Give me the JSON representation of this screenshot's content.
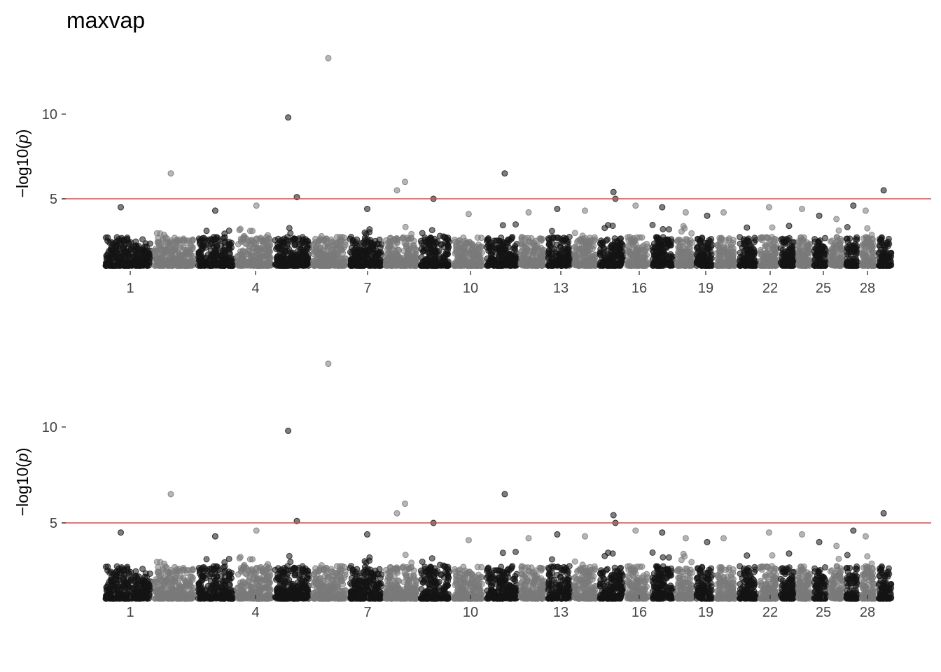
{
  "title": "maxvap",
  "colors": {
    "odd_chromosome": "#141414",
    "even_chromosome": "#7a7a7a",
    "threshold": "#e0474c",
    "tick_text": "#444444"
  },
  "chart_data": [
    {
      "type": "scatter",
      "subtype": "manhattan",
      "ylabel_text": "−log10(",
      "ylabel_var": "p",
      "ylabel_close": ")",
      "threshold": 5,
      "ylim": [
        1,
        13.5
      ],
      "yticks": [
        5,
        10
      ],
      "grid": false,
      "xticks": [
        "1",
        "4",
        "7",
        "10",
        "13",
        "16",
        "19",
        "22",
        "25",
        "28"
      ],
      "top_hits": [
        {
          "chr": 1,
          "y": 4.5
        },
        {
          "chr": 2,
          "y": 6.5
        },
        {
          "chr": 3,
          "y": 4.3
        },
        {
          "chr": 4,
          "y": 4.6
        },
        {
          "chr": 5,
          "y": 5.1
        },
        {
          "chr": 5,
          "y": 9.8
        },
        {
          "chr": 6,
          "y": 13.3
        },
        {
          "chr": 7,
          "y": 4.4
        },
        {
          "chr": 8,
          "y": 6.0
        },
        {
          "chr": 8,
          "y": 5.5
        },
        {
          "chr": 9,
          "y": 5.0
        },
        {
          "chr": 10,
          "y": 4.1
        },
        {
          "chr": 11,
          "y": 6.5
        },
        {
          "chr": 12,
          "y": 4.2
        },
        {
          "chr": 13,
          "y": 4.4
        },
        {
          "chr": 14,
          "y": 4.3
        },
        {
          "chr": 15,
          "y": 5.4
        },
        {
          "chr": 15,
          "y": 5.0
        },
        {
          "chr": 16,
          "y": 4.6
        },
        {
          "chr": 17,
          "y": 4.5
        },
        {
          "chr": 18,
          "y": 4.2
        },
        {
          "chr": 19,
          "y": 4.0
        },
        {
          "chr": 20,
          "y": 4.2
        },
        {
          "chr": 21,
          "y": 3.3
        },
        {
          "chr": 22,
          "y": 4.5
        },
        {
          "chr": 23,
          "y": 3.4
        },
        {
          "chr": 24,
          "y": 4.4
        },
        {
          "chr": 25,
          "y": 4.0
        },
        {
          "chr": 26,
          "y": 3.8
        },
        {
          "chr": 27,
          "y": 4.6
        },
        {
          "chr": 28,
          "y": 4.3
        },
        {
          "chr": 29,
          "y": 5.5
        }
      ]
    },
    {
      "type": "scatter",
      "subtype": "manhattan",
      "ylabel_text": "−log10(",
      "ylabel_var": "p",
      "ylabel_close": ")",
      "threshold": 5,
      "ylim": [
        1,
        13.5
      ],
      "yticks": [
        5,
        10
      ],
      "grid": false,
      "xticks": [
        "1",
        "4",
        "7",
        "10",
        "13",
        "16",
        "19",
        "22",
        "25",
        "28"
      ],
      "top_hits": [
        {
          "chr": 1,
          "y": 4.5
        },
        {
          "chr": 2,
          "y": 6.5
        },
        {
          "chr": 3,
          "y": 4.3
        },
        {
          "chr": 4,
          "y": 4.6
        },
        {
          "chr": 5,
          "y": 5.1
        },
        {
          "chr": 5,
          "y": 9.8
        },
        {
          "chr": 6,
          "y": 13.3
        },
        {
          "chr": 7,
          "y": 4.4
        },
        {
          "chr": 8,
          "y": 6.0
        },
        {
          "chr": 8,
          "y": 5.5
        },
        {
          "chr": 9,
          "y": 5.0
        },
        {
          "chr": 10,
          "y": 4.1
        },
        {
          "chr": 11,
          "y": 6.5
        },
        {
          "chr": 12,
          "y": 4.2
        },
        {
          "chr": 13,
          "y": 4.4
        },
        {
          "chr": 14,
          "y": 4.3
        },
        {
          "chr": 15,
          "y": 5.4
        },
        {
          "chr": 15,
          "y": 5.0
        },
        {
          "chr": 16,
          "y": 4.6
        },
        {
          "chr": 17,
          "y": 4.5
        },
        {
          "chr": 18,
          "y": 4.2
        },
        {
          "chr": 19,
          "y": 4.0
        },
        {
          "chr": 20,
          "y": 4.2
        },
        {
          "chr": 21,
          "y": 3.3
        },
        {
          "chr": 22,
          "y": 4.5
        },
        {
          "chr": 23,
          "y": 3.4
        },
        {
          "chr": 24,
          "y": 4.4
        },
        {
          "chr": 25,
          "y": 4.0
        },
        {
          "chr": 26,
          "y": 3.8
        },
        {
          "chr": 27,
          "y": 4.6
        },
        {
          "chr": 28,
          "y": 4.3
        },
        {
          "chr": 29,
          "y": 5.5
        }
      ]
    }
  ]
}
